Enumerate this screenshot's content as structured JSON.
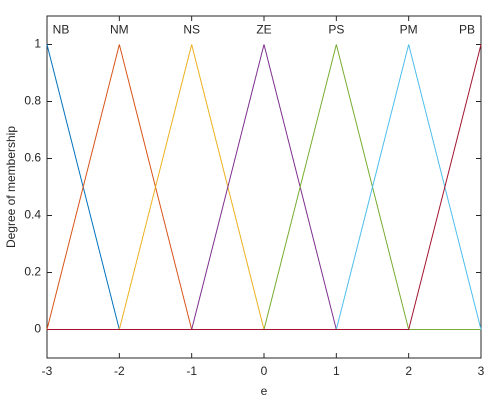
{
  "chart_data": {
    "type": "line",
    "xlabel": "e",
    "ylabel": "Degree of membership",
    "xlim": [
      -3,
      3
    ],
    "ylim": [
      -0.1,
      1.1
    ],
    "xticks": [
      -3,
      -2,
      -1,
      0,
      1,
      2,
      3
    ],
    "yticks": [
      0,
      0.2,
      0.4,
      0.6,
      0.8,
      1
    ],
    "series": [
      {
        "name": "NB",
        "color": "#0072BD",
        "x": [
          -3,
          -2,
          3
        ],
        "values": [
          1,
          0,
          0
        ]
      },
      {
        "name": "NM",
        "color": "#D95319",
        "x": [
          -3,
          -2,
          -1,
          3
        ],
        "values": [
          0,
          1,
          0,
          0
        ]
      },
      {
        "name": "NS",
        "color": "#EDB120",
        "x": [
          -3,
          -2,
          -1,
          0,
          3
        ],
        "values": [
          0,
          0,
          1,
          0,
          0
        ]
      },
      {
        "name": "ZE",
        "color": "#7E2F8E",
        "x": [
          -3,
          -1,
          0,
          1,
          3
        ],
        "values": [
          0,
          0,
          1,
          0,
          0
        ]
      },
      {
        "name": "PS",
        "color": "#77AC30",
        "x": [
          -3,
          0,
          1,
          2,
          3
        ],
        "values": [
          0,
          0,
          1,
          0,
          0
        ]
      },
      {
        "name": "PM",
        "color": "#4DBEEE",
        "x": [
          -3,
          1,
          2,
          3
        ],
        "values": [
          0,
          0,
          1,
          0
        ]
      },
      {
        "name": "PB",
        "color": "#A2142F",
        "x": [
          -3,
          2,
          3
        ],
        "values": [
          0,
          0,
          1
        ]
      }
    ]
  }
}
